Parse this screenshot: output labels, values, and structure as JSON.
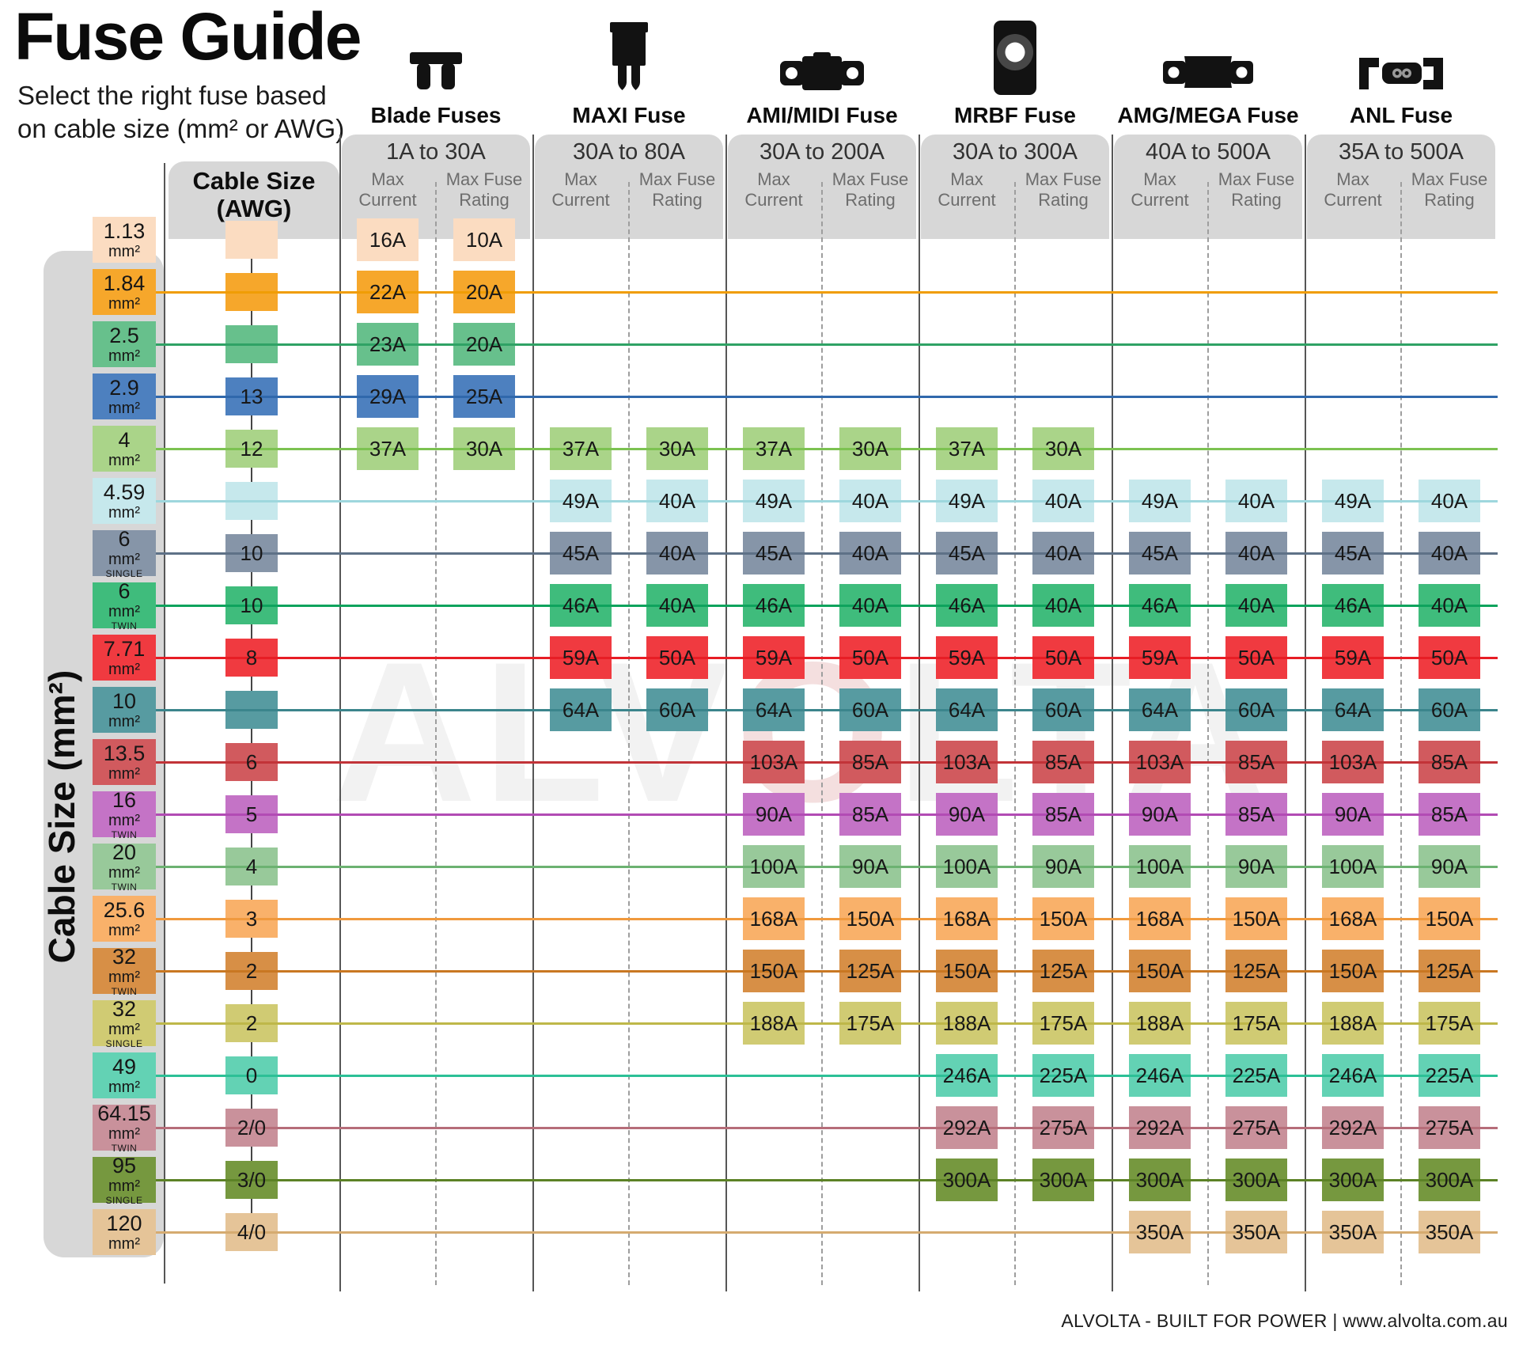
{
  "title": "Fuse Guide",
  "subtitle_line1": "Select the right fuse based",
  "subtitle_line2": "on cable size (mm² or AWG)",
  "left_axis_label": "Cable Size (mm²)",
  "awg_header_line1": "Cable Size",
  "awg_header_line2": "(AWG)",
  "col_header_current_line1": "Max",
  "col_header_current_line2": "Current",
  "col_header_rating_line1": "Max Fuse",
  "col_header_rating_line2": "Rating",
  "watermark": "ALVOLTA",
  "watermark_color": "rgba(0,0,0,0.05)",
  "watermark_accent": "rgba(198,94,94,0.20)",
  "footer": "ALVOLTA - BUILT FOR POWER | www.alvolta.com.au",
  "panel_gray": "#d7d7d7",
  "icon_color": "#121212",
  "grid_solid_color": "#565656",
  "grid_dashed_color": "#9e9e9e",
  "groups": [
    {
      "name": "Blade Fuses",
      "range": "1A to 30A",
      "icon": "blade"
    },
    {
      "name": "MAXI Fuse",
      "range": "30A to 80A",
      "icon": "maxi"
    },
    {
      "name": "AMI/MIDI Fuse",
      "range": "30A to 200A",
      "icon": "ami-midi"
    },
    {
      "name": "MRBF Fuse",
      "range": "30A to 300A",
      "icon": "mrbf"
    },
    {
      "name": "AMG/MEGA Fuse",
      "range": "40A to 500A",
      "icon": "amg-mega"
    },
    {
      "name": "ANL Fuse",
      "range": "35A to 500A",
      "icon": "anl"
    }
  ],
  "rows": [
    {
      "size": "1.13",
      "unit": "mm²",
      "variant": null,
      "awg": "",
      "color": "#fbdcc1",
      "line_color": null,
      "cells": [
        [
          "16A",
          "10A"
        ],
        null,
        null,
        null,
        null,
        null
      ]
    },
    {
      "size": "1.84",
      "unit": "mm²",
      "variant": null,
      "awg": "",
      "color": "#f6a72b",
      "line_color": "#f09d05",
      "cells": [
        [
          "22A",
          "20A"
        ],
        null,
        null,
        null,
        null,
        null
      ]
    },
    {
      "size": "2.5",
      "unit": "mm²",
      "variant": null,
      "awg": "",
      "color": "#67c08c",
      "line_color": "#2fa265",
      "cells": [
        [
          "23A",
          "20A"
        ],
        null,
        null,
        null,
        null,
        null
      ]
    },
    {
      "size": "2.9",
      "unit": "mm²",
      "variant": null,
      "awg": "13",
      "color": "#4d80bf",
      "line_color": "#3068ac",
      "cells": [
        [
          "29A",
          "25A"
        ],
        null,
        null,
        null,
        null,
        null
      ]
    },
    {
      "size": "4",
      "unit": "mm²",
      "variant": null,
      "awg": "12",
      "color": "#aad489",
      "line_color": "#7cc251",
      "cells": [
        [
          "37A",
          "30A"
        ],
        [
          "37A",
          "30A"
        ],
        [
          "37A",
          "30A"
        ],
        [
          "37A",
          "30A"
        ],
        null,
        null
      ]
    },
    {
      "size": "4.59",
      "unit": "mm²",
      "variant": null,
      "awg": "",
      "color": "#c6e8ec",
      "line_color": "#9ed7dd",
      "cells": [
        null,
        [
          "49A",
          "40A"
        ],
        [
          "49A",
          "40A"
        ],
        [
          "49A",
          "40A"
        ],
        [
          "49A",
          "40A"
        ],
        [
          "49A",
          "40A"
        ]
      ]
    },
    {
      "size": "6",
      "unit": "mm²",
      "variant": "SINGLE",
      "awg": "10",
      "color": "#8695a8",
      "line_color": "#5e7187",
      "cells": [
        null,
        [
          "45A",
          "40A"
        ],
        [
          "45A",
          "40A"
        ],
        [
          "45A",
          "40A"
        ],
        [
          "45A",
          "40A"
        ],
        [
          "45A",
          "40A"
        ]
      ]
    },
    {
      "size": "6",
      "unit": "mm²",
      "variant": "TWIN",
      "awg": "10",
      "color": "#3fbc7c",
      "line_color": "#0ea35d",
      "cells": [
        null,
        [
          "46A",
          "40A"
        ],
        [
          "46A",
          "40A"
        ],
        [
          "46A",
          "40A"
        ],
        [
          "46A",
          "40A"
        ],
        [
          "46A",
          "40A"
        ]
      ]
    },
    {
      "size": "7.71",
      "unit": "mm²",
      "variant": null,
      "awg": "8",
      "color": "#f03a40",
      "line_color": "#e71d25",
      "cells": [
        null,
        [
          "59A",
          "50A"
        ],
        [
          "59A",
          "50A"
        ],
        [
          "59A",
          "50A"
        ],
        [
          "59A",
          "50A"
        ],
        [
          "59A",
          "50A"
        ]
      ]
    },
    {
      "size": "10",
      "unit": "mm²",
      "variant": null,
      "awg": "",
      "color": "#579ba1",
      "line_color": "#3b858c",
      "cells": [
        null,
        [
          "64A",
          "60A"
        ],
        [
          "64A",
          "60A"
        ],
        [
          "64A",
          "60A"
        ],
        [
          "64A",
          "60A"
        ],
        [
          "64A",
          "60A"
        ]
      ]
    },
    {
      "size": "13.5",
      "unit": "mm²",
      "variant": null,
      "awg": "6",
      "color": "#d15a5e",
      "line_color": "#c23338",
      "cells": [
        null,
        null,
        [
          "103A",
          "85A"
        ],
        [
          "103A",
          "85A"
        ],
        [
          "103A",
          "85A"
        ],
        [
          "103A",
          "85A"
        ]
      ]
    },
    {
      "size": "16",
      "unit": "mm²",
      "variant": "TWIN",
      "awg": "5",
      "color": "#c473c6",
      "line_color": "#b24bb4",
      "cells": [
        null,
        null,
        [
          "90A",
          "85A"
        ],
        [
          "90A",
          "85A"
        ],
        [
          "90A",
          "85A"
        ],
        [
          "90A",
          "85A"
        ]
      ]
    },
    {
      "size": "20",
      "unit": "mm²",
      "variant": "TWIN",
      "awg": "4",
      "color": "#98c99a",
      "line_color": "#6cb271",
      "cells": [
        null,
        null,
        [
          "100A",
          "90A"
        ],
        [
          "100A",
          "90A"
        ],
        [
          "100A",
          "90A"
        ],
        [
          "100A",
          "90A"
        ]
      ]
    },
    {
      "size": "25.6",
      "unit": "mm²",
      "variant": null,
      "awg": "3",
      "color": "#f9b16a",
      "line_color": "#f0993d",
      "cells": [
        null,
        null,
        [
          "168A",
          "150A"
        ],
        [
          "168A",
          "150A"
        ],
        [
          "168A",
          "150A"
        ],
        [
          "168A",
          "150A"
        ]
      ]
    },
    {
      "size": "32",
      "unit": "mm²",
      "variant": "TWIN",
      "awg": "2",
      "color": "#d78f46",
      "line_color": "#c97722",
      "cells": [
        null,
        null,
        [
          "150A",
          "125A"
        ],
        [
          "150A",
          "125A"
        ],
        [
          "150A",
          "125A"
        ],
        [
          "150A",
          "125A"
        ]
      ]
    },
    {
      "size": "32",
      "unit": "mm²",
      "variant": "SINGLE",
      "awg": "2",
      "color": "#d0cb73",
      "line_color": "#beb849",
      "cells": [
        null,
        null,
        [
          "188A",
          "175A"
        ],
        [
          "188A",
          "175A"
        ],
        [
          "188A",
          "175A"
        ],
        [
          "188A",
          "175A"
        ]
      ]
    },
    {
      "size": "49",
      "unit": "mm²",
      "variant": null,
      "awg": "0",
      "color": "#63d2b4",
      "line_color": "#2cc096",
      "cells": [
        null,
        null,
        null,
        [
          "246A",
          "225A"
        ],
        [
          "246A",
          "225A"
        ],
        [
          "246A",
          "225A"
        ]
      ]
    },
    {
      "size": "64.15",
      "unit": "mm²",
      "variant": "TWIN",
      "awg": "2/0",
      "color": "#c9919b",
      "line_color": "#b66d79",
      "cells": [
        null,
        null,
        null,
        [
          "292A",
          "275A"
        ],
        [
          "292A",
          "275A"
        ],
        [
          "292A",
          "275A"
        ]
      ]
    },
    {
      "size": "95",
      "unit": "mm²",
      "variant": "SINGLE",
      "awg": "3/0",
      "color": "#76983f",
      "line_color": "#5c8226",
      "cells": [
        null,
        null,
        null,
        [
          "300A",
          "300A"
        ],
        [
          "300A",
          "300A"
        ],
        [
          "300A",
          "300A"
        ]
      ]
    },
    {
      "size": "120",
      "unit": "mm²",
      "variant": null,
      "awg": "4/0",
      "color": "#e5c498",
      "line_color": "#d5ab70",
      "cells": [
        null,
        null,
        null,
        null,
        [
          "350A",
          "350A"
        ],
        [
          "350A",
          "350A"
        ]
      ]
    }
  ],
  "chart_data": {
    "type": "table",
    "title": "Fuse Guide",
    "columns": [
      "Cable Size (mm²)",
      "Cable Size (AWG)",
      "Blade Fuses (1A to 30A) Max Current",
      "Blade Fuses (1A to 30A) Max Fuse Rating",
      "MAXI Fuse (30A to 80A) Max Current",
      "MAXI Fuse (30A to 80A) Max Fuse Rating",
      "AMI/MIDI Fuse (30A to 200A) Max Current",
      "AMI/MIDI Fuse (30A to 200A) Max Fuse Rating",
      "MRBF Fuse (30A to 300A) Max Current",
      "MRBF Fuse (30A to 300A) Max Fuse Rating",
      "AMG/MEGA Fuse (40A to 500A) Max Current",
      "AMG/MEGA Fuse (40A to 500A) Max Fuse Rating",
      "ANL Fuse (35A to 500A) Max Current",
      "ANL Fuse (35A to 500A) Max Fuse Rating"
    ],
    "rows": [
      [
        "1.13 mm²",
        "",
        "16A",
        "10A",
        "",
        "",
        "",
        "",
        "",
        "",
        "",
        "",
        "",
        ""
      ],
      [
        "1.84 mm²",
        "",
        "22A",
        "20A",
        "",
        "",
        "",
        "",
        "",
        "",
        "",
        "",
        "",
        ""
      ],
      [
        "2.5 mm²",
        "",
        "23A",
        "20A",
        "",
        "",
        "",
        "",
        "",
        "",
        "",
        "",
        "",
        ""
      ],
      [
        "2.9 mm²",
        "13",
        "29A",
        "25A",
        "",
        "",
        "",
        "",
        "",
        "",
        "",
        "",
        "",
        ""
      ],
      [
        "4 mm²",
        "12",
        "37A",
        "30A",
        "37A",
        "30A",
        "37A",
        "30A",
        "37A",
        "30A",
        "",
        "",
        "",
        ""
      ],
      [
        "4.59 mm²",
        "",
        "",
        "",
        "49A",
        "40A",
        "49A",
        "40A",
        "49A",
        "40A",
        "49A",
        "40A",
        "49A",
        "40A"
      ],
      [
        "6 mm² SINGLE",
        "10",
        "",
        "",
        "45A",
        "40A",
        "45A",
        "40A",
        "45A",
        "40A",
        "45A",
        "40A",
        "45A",
        "40A"
      ],
      [
        "6 mm² TWIN",
        "10",
        "",
        "",
        "46A",
        "40A",
        "46A",
        "40A",
        "46A",
        "40A",
        "46A",
        "40A",
        "46A",
        "40A"
      ],
      [
        "7.71 mm²",
        "8",
        "",
        "",
        "59A",
        "50A",
        "59A",
        "50A",
        "59A",
        "50A",
        "59A",
        "50A",
        "59A",
        "50A"
      ],
      [
        "10 mm²",
        "",
        "",
        "",
        "64A",
        "60A",
        "64A",
        "60A",
        "64A",
        "60A",
        "64A",
        "60A",
        "64A",
        "60A"
      ],
      [
        "13.5 mm²",
        "6",
        "",
        "",
        "",
        "",
        "103A",
        "85A",
        "103A",
        "85A",
        "103A",
        "85A",
        "103A",
        "85A"
      ],
      [
        "16 mm² TWIN",
        "5",
        "",
        "",
        "",
        "",
        "90A",
        "85A",
        "90A",
        "85A",
        "90A",
        "85A",
        "90A",
        "85A"
      ],
      [
        "20 mm² TWIN",
        "4",
        "",
        "",
        "",
        "",
        "100A",
        "90A",
        "100A",
        "90A",
        "100A",
        "90A",
        "100A",
        "90A"
      ],
      [
        "25.6 mm²",
        "3",
        "",
        "",
        "",
        "",
        "168A",
        "150A",
        "168A",
        "150A",
        "168A",
        "150A",
        "168A",
        "150A"
      ],
      [
        "32 mm² TWIN",
        "2",
        "",
        "",
        "",
        "",
        "150A",
        "125A",
        "150A",
        "125A",
        "150A",
        "125A",
        "150A",
        "125A"
      ],
      [
        "32 mm² SINGLE",
        "2",
        "",
        "",
        "",
        "",
        "188A",
        "175A",
        "188A",
        "175A",
        "188A",
        "175A",
        "188A",
        "175A"
      ],
      [
        "49 mm²",
        "0",
        "",
        "",
        "",
        "",
        "",
        "",
        "246A",
        "225A",
        "246A",
        "225A",
        "246A",
        "225A"
      ],
      [
        "64.15 mm² TWIN",
        "2/0",
        "",
        "",
        "",
        "",
        "",
        "",
        "292A",
        "275A",
        "292A",
        "275A",
        "292A",
        "275A"
      ],
      [
        "95 mm² SINGLE",
        "3/0",
        "",
        "",
        "",
        "",
        "",
        "",
        "300A",
        "300A",
        "300A",
        "300A",
        "300A",
        "300A"
      ],
      [
        "120 mm²",
        "4/0",
        "",
        "",
        "",
        "",
        "",
        "",
        "",
        "",
        "350A",
        "350A",
        "350A",
        "350A"
      ]
    ]
  }
}
